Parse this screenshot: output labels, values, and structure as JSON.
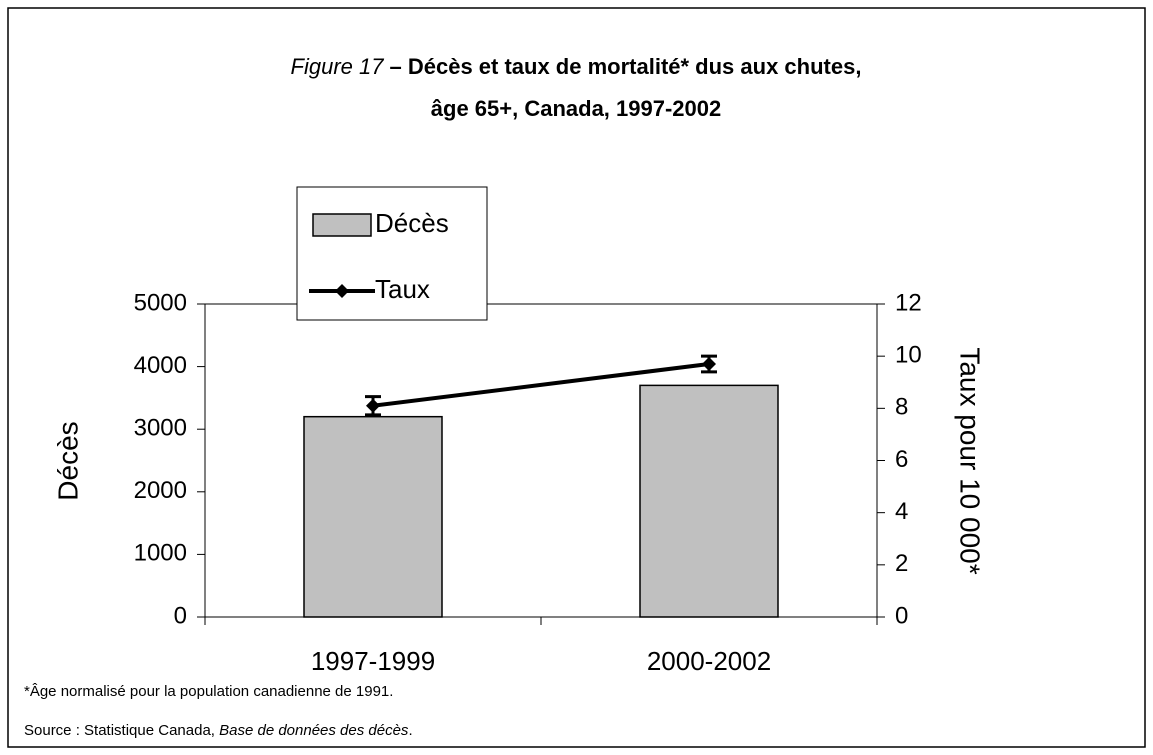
{
  "chart_data": {
    "type": "bar_line",
    "title": {
      "label": "Figure 17",
      "lines": [
        "– Décès et taux de mortalité* dus aux chutes,",
        "âge 65+, Canada, 1997-2002"
      ]
    },
    "y_label": "Décès",
    "y2_label": "Taux pour 10 000*",
    "categories": [
      "1997-1999",
      "2000-2002"
    ],
    "series": [
      {
        "name": "Décès",
        "type": "bar",
        "color": "#c0c0c0",
        "values": [
          3200,
          3700
        ]
      },
      {
        "name": "Taux",
        "type": "line",
        "axis": "y2",
        "color": "#000000",
        "values": [
          8.1,
          9.7
        ],
        "errors": [
          0.35,
          0.3
        ]
      }
    ],
    "ylim": [
      0,
      5000
    ],
    "yticks": [
      0,
      1000,
      2000,
      3000,
      4000,
      5000
    ],
    "y2lim": [
      0,
      12
    ],
    "y2ticks": [
      0,
      2,
      4,
      6,
      8,
      10,
      12
    ],
    "grid": false,
    "legend": "top-left",
    "footnote": "*Âge normalisé pour la population canadienne de 1991.",
    "source": {
      "prefix": "Source : Statistique Canada, ",
      "italic": "Base de données des décès",
      "suffix": "."
    }
  }
}
